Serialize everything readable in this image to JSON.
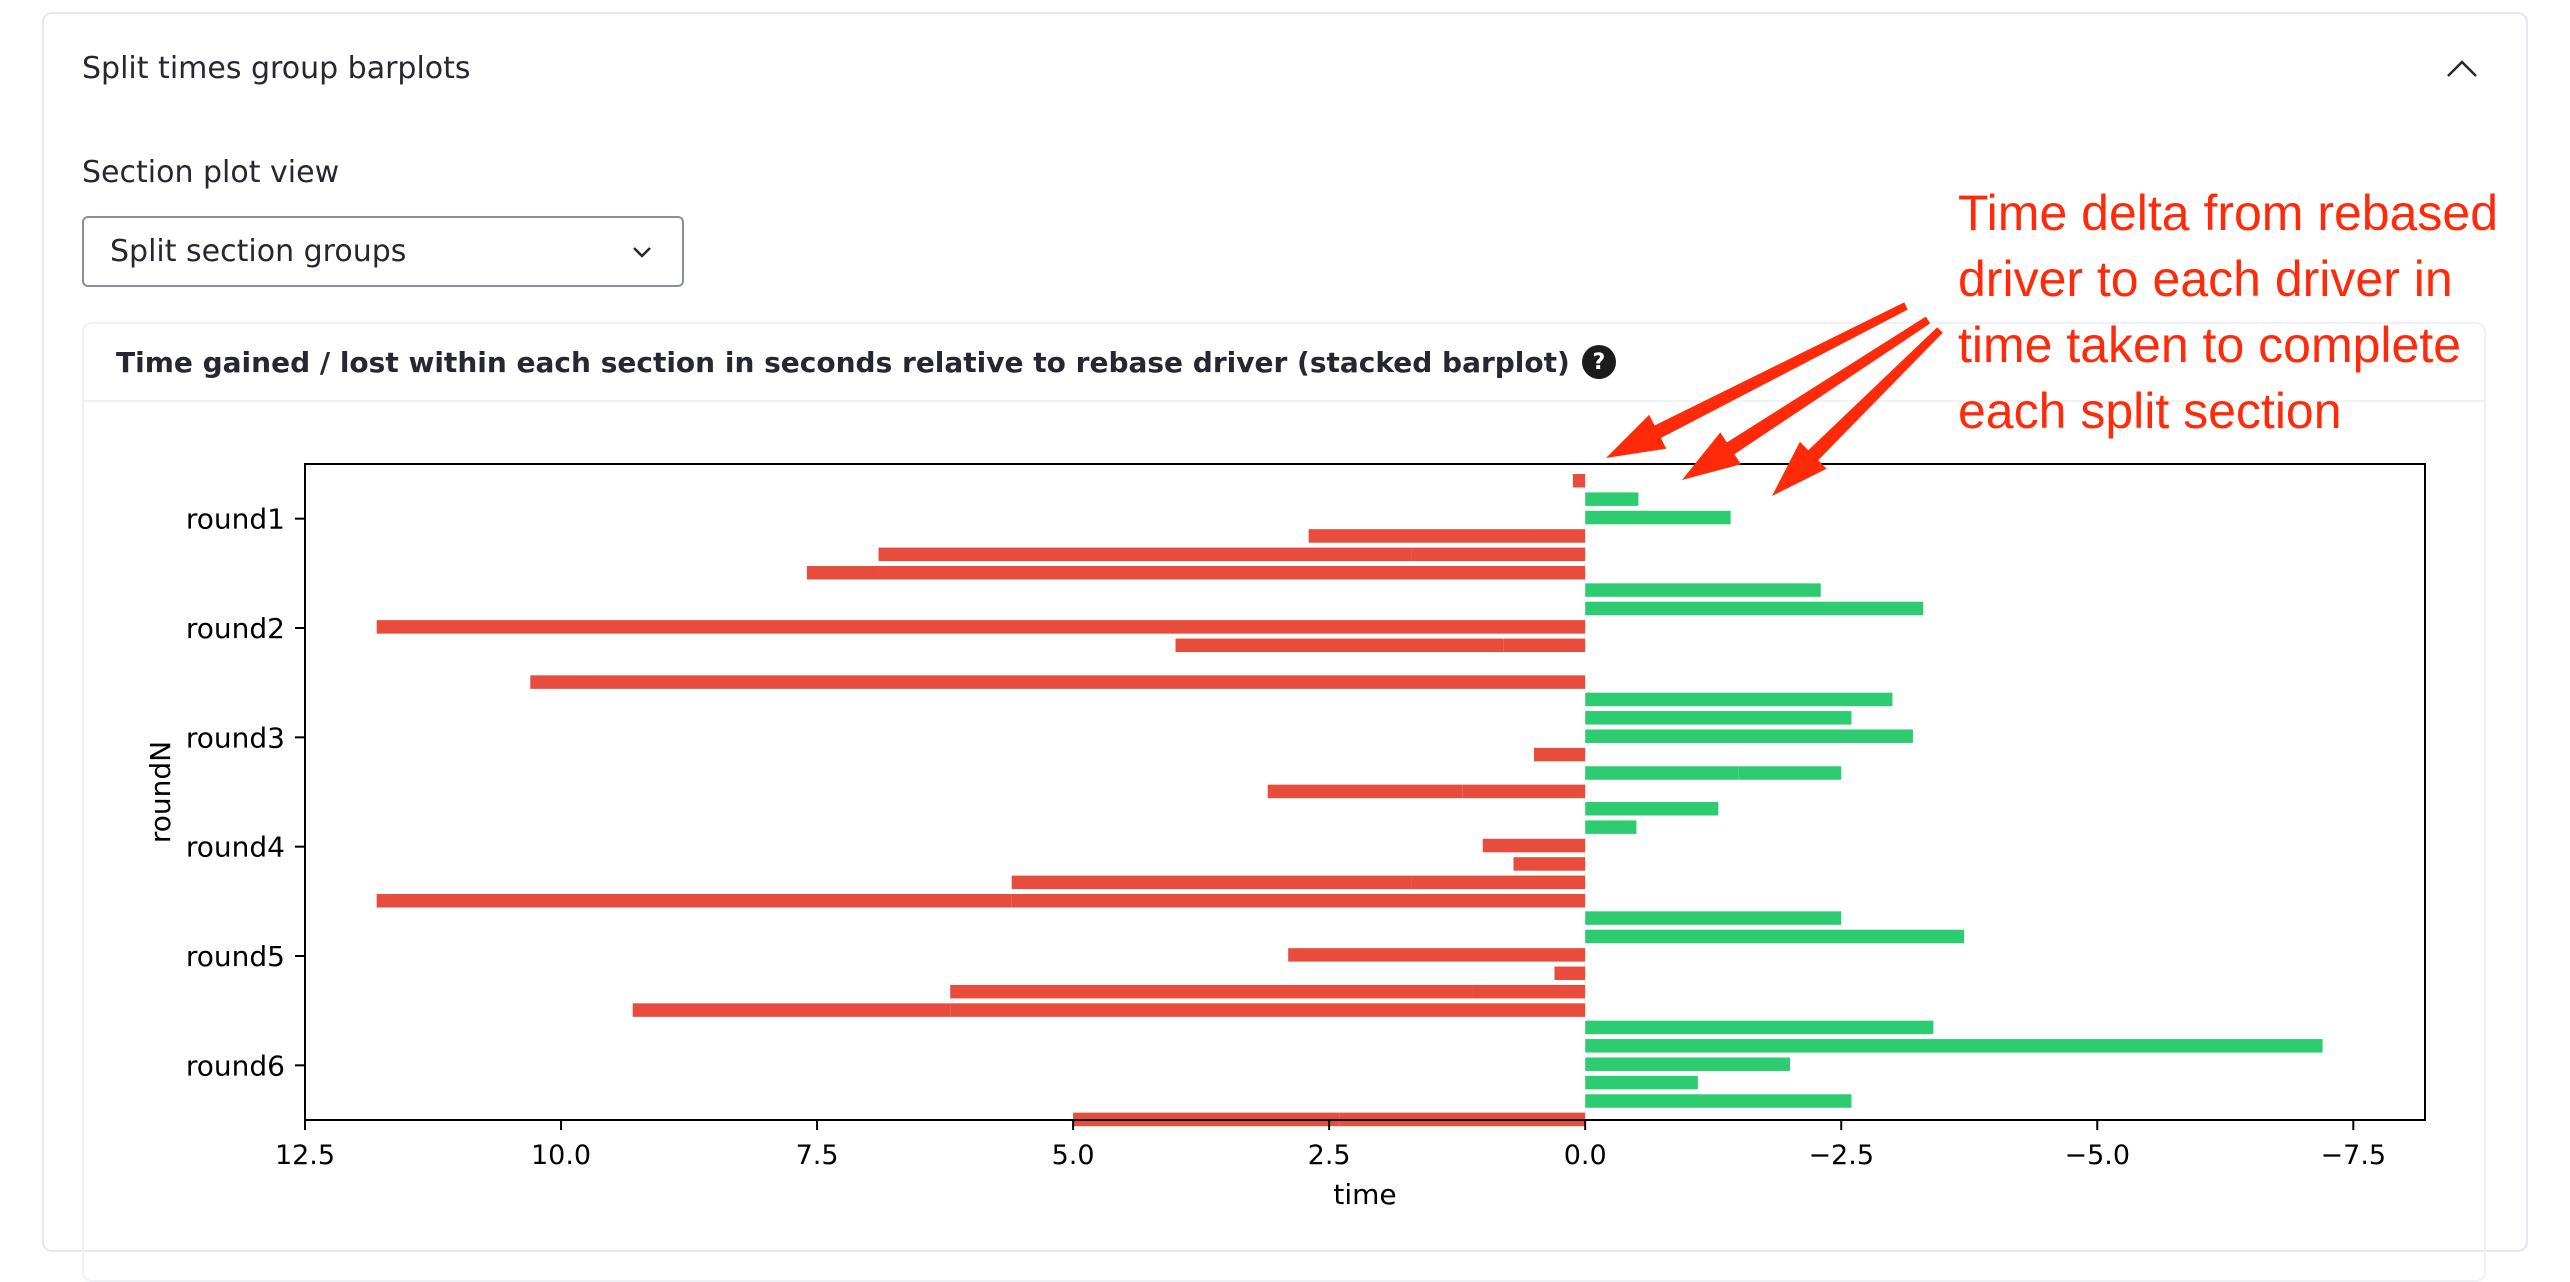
{
  "expander": {
    "title": "Split times group barplots",
    "icon": "chevron-up-icon"
  },
  "section_view": {
    "label": "Section plot view",
    "selected": "Split section groups",
    "icon": "chevron-down-icon"
  },
  "panel": {
    "title": "Time gained / lost within each section in seconds relative to rebase driver (stacked barplot)",
    "help_icon": "question-circle-icon"
  },
  "annotation": {
    "text": "Time delta from rebased driver to each driver in time taken to complete each split section",
    "color": "#ff2a0a"
  },
  "colors": {
    "gain": "#2ecc71",
    "loss": "#e74c3c"
  },
  "chart_data": {
    "type": "bar",
    "orientation": "horizontal",
    "stacked": true,
    "xlabel": "time",
    "ylabel": "roundN",
    "xlim": [
      12.5,
      -8.2
    ],
    "x_inverted": true,
    "xticks": [
      "12.5",
      "10.0",
      "7.5",
      "5.0",
      "2.5",
      "0.0",
      "−2.5",
      "−5.0",
      "−7.5"
    ],
    "xtick_values": [
      12.5,
      10.0,
      7.5,
      5.0,
      2.5,
      0.0,
      -2.5,
      -5.0,
      -7.5
    ],
    "categories": [
      "round1",
      "round2",
      "round3",
      "round4",
      "round5",
      "round6"
    ],
    "groups": [
      {
        "category": "round1",
        "drivers": [
          {
            "segments": [
              0.12
            ]
          },
          {
            "segments": [
              -0.52
            ]
          },
          {
            "segments": [
              -1.42
            ]
          },
          {
            "segments": [
              0.5,
              2.2
            ]
          },
          {
            "segments": [
              1.7,
              5.2
            ]
          },
          {
            "segments": [
              6.9,
              0.7
            ]
          }
        ]
      },
      {
        "category": "round2",
        "drivers": [
          {
            "segments": [
              -2.3
            ]
          },
          {
            "segments": [
              -3.3
            ]
          },
          {
            "segments": [
              11.8
            ]
          },
          {
            "segments": [
              0.8,
              3.2
            ]
          },
          {
            "segments": [
              0.0
            ]
          },
          {
            "segments": [
              9.8,
              0.5
            ]
          }
        ]
      },
      {
        "category": "round3",
        "drivers": [
          {
            "segments": [
              -3.0
            ]
          },
          {
            "segments": [
              -2.6
            ]
          },
          {
            "segments": [
              -3.2
            ]
          },
          {
            "segments": [
              0.5
            ]
          },
          {
            "segments": [
              -1.5,
              -1.0
            ]
          },
          {
            "segments": [
              1.2,
              1.9
            ]
          }
        ]
      },
      {
        "category": "round4",
        "drivers": [
          {
            "segments": [
              -1.3
            ]
          },
          {
            "segments": [
              -0.5
            ]
          },
          {
            "segments": [
              0.5,
              0.5
            ]
          },
          {
            "segments": [
              0.7
            ]
          },
          {
            "segments": [
              1.7,
              3.9
            ]
          },
          {
            "segments": [
              5.6,
              6.2
            ]
          }
        ]
      },
      {
        "category": "round5",
        "drivers": [
          {
            "segments": [
              -2.5
            ]
          },
          {
            "segments": [
              -3.7
            ]
          },
          {
            "segments": [
              2.9
            ]
          },
          {
            "segments": [
              0.3
            ]
          },
          {
            "segments": [
              1.1,
              5.1
            ]
          },
          {
            "segments": [
              6.2,
              3.1
            ]
          }
        ]
      },
      {
        "category": "round6",
        "drivers": [
          {
            "segments": [
              -3.4
            ]
          },
          {
            "segments": [
              -7.2
            ]
          },
          {
            "segments": [
              -2.0
            ]
          },
          {
            "segments": [
              -1.1
            ]
          },
          {
            "segments": [
              -2.6
            ]
          },
          {
            "segments": [
              2.4,
              2.6
            ]
          }
        ]
      }
    ]
  }
}
